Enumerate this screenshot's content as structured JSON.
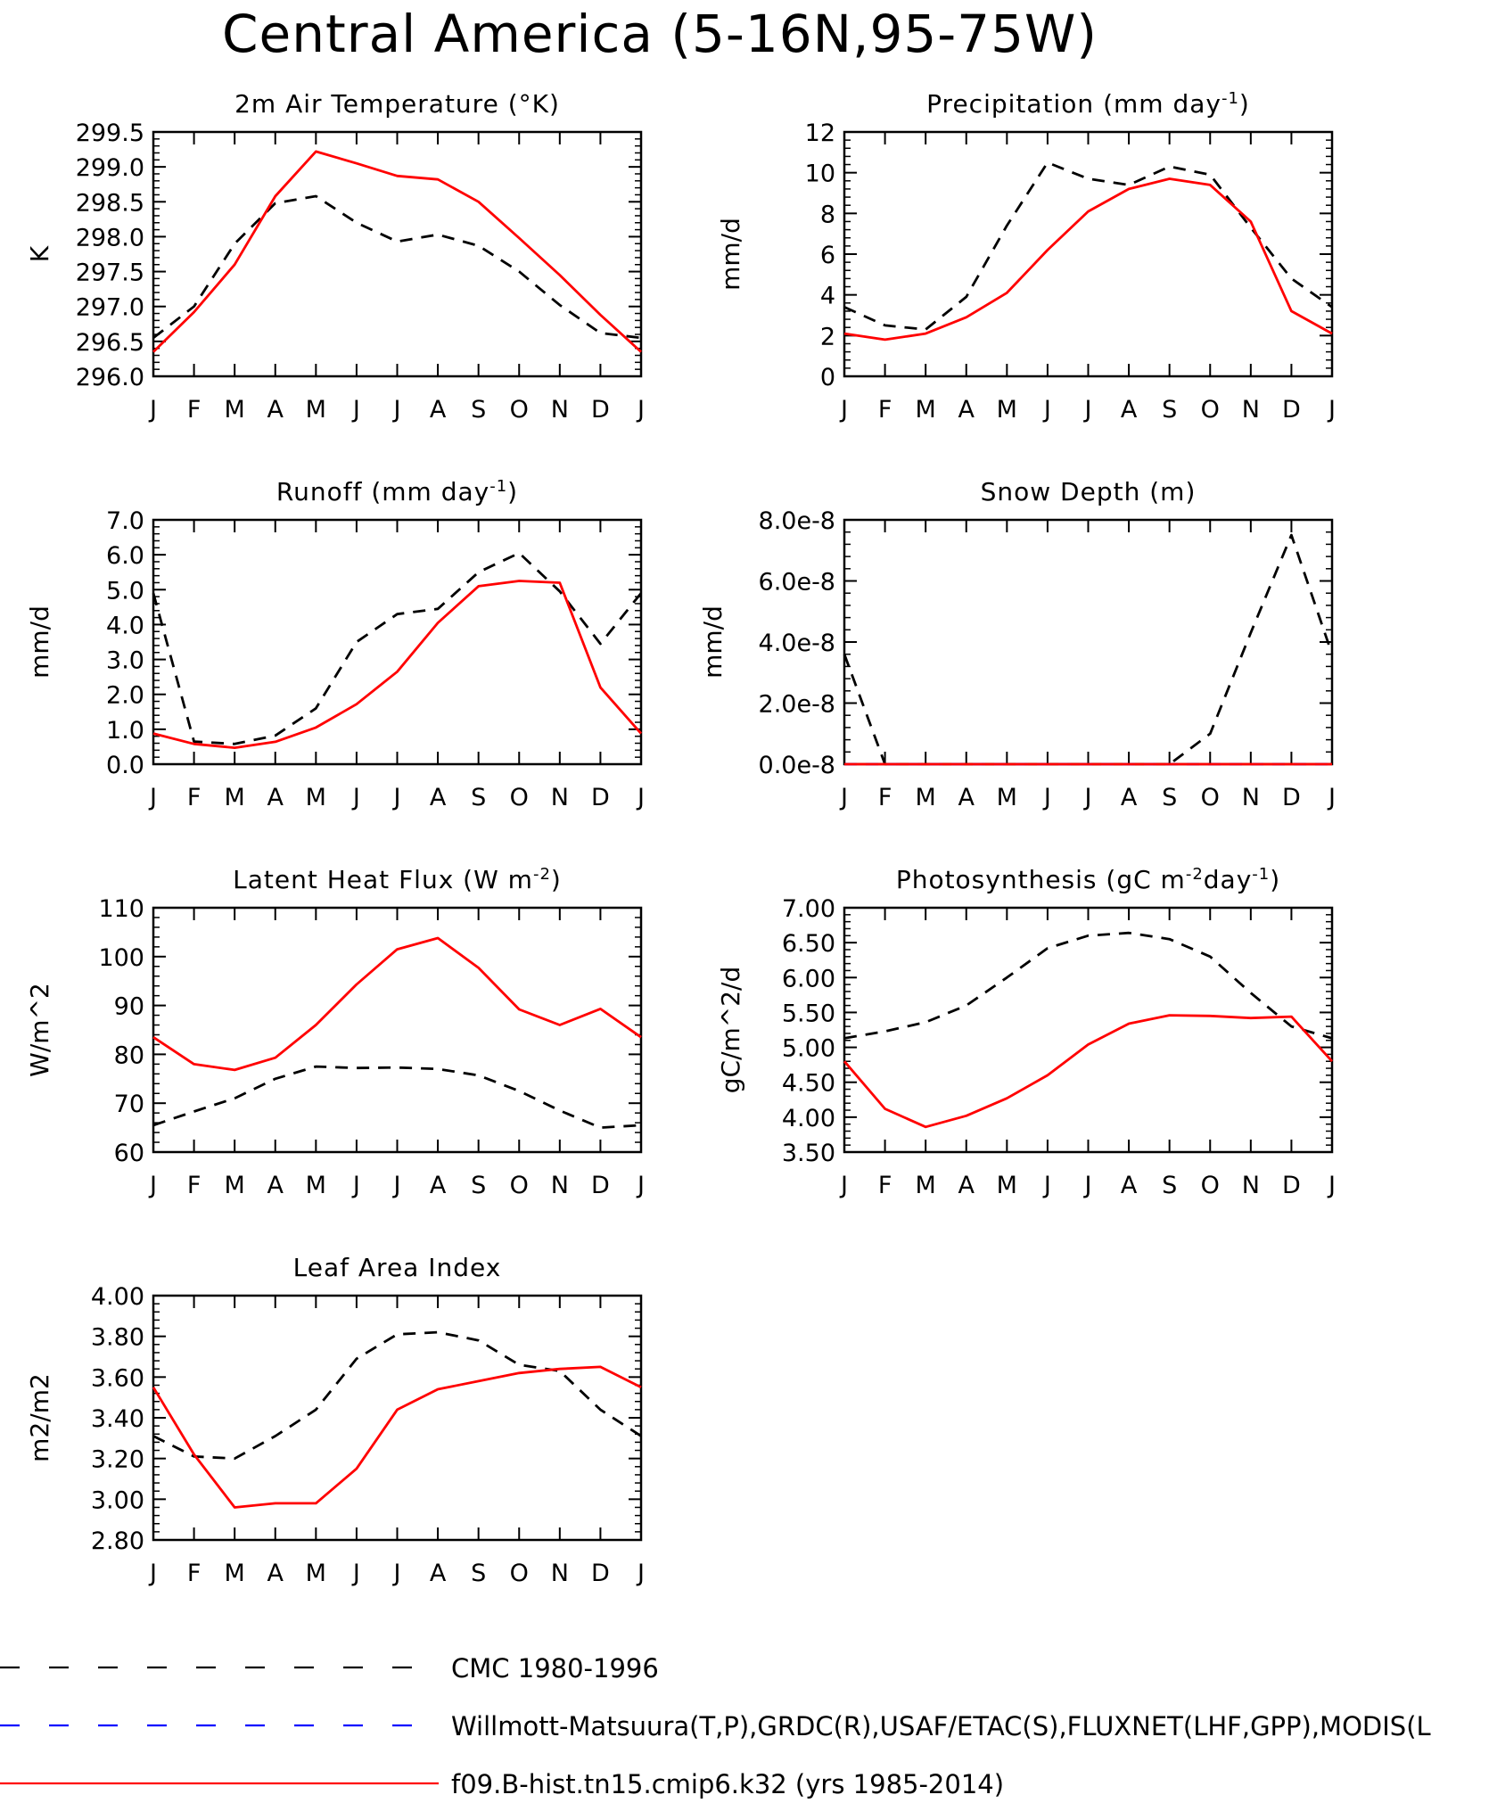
{
  "page_title": "Central America (5-16N,95-75W)",
  "months": [
    "J",
    "F",
    "M",
    "A",
    "M",
    "J",
    "J",
    "A",
    "S",
    "O",
    "N",
    "D",
    "J"
  ],
  "legend": [
    {
      "label": "CMC 1980-1996",
      "color": "#000000",
      "style": "dashed"
    },
    {
      "label": "Willmott-Matsuura(T,P),GRDC(R),USAF/ETAC(S),FLUXNET(LHF,GPP),MODIS(L",
      "color": "#0000ff",
      "style": "dashed"
    },
    {
      "label": "f09.B-hist.tn15.cmip6.k32 (yrs 1985-2014)",
      "color": "#ff0000",
      "style": "solid"
    }
  ],
  "chart_data": [
    {
      "type": "line",
      "title": "2m Air Temperature (°K)",
      "ylabel": "K",
      "ylim": [
        296.0,
        299.5
      ],
      "yticks": [
        "296.0",
        "296.5",
        "297.0",
        "297.5",
        "298.0",
        "298.5",
        "299.0",
        "299.5"
      ],
      "series": [
        {
          "name": "CMC 1980-1996",
          "style": "dashed",
          "color": "#000000",
          "values": [
            296.55,
            297.0,
            297.9,
            298.48,
            298.58,
            298.2,
            297.93,
            298.03,
            297.87,
            297.5,
            297.02,
            296.62,
            296.55
          ]
        },
        {
          "name": "f09.B-hist.tn15.cmip6.k32 (yrs 1985-2014)",
          "style": "solid",
          "color": "#ff0000",
          "values": [
            296.35,
            296.92,
            297.6,
            298.58,
            299.22,
            299.05,
            298.87,
            298.82,
            298.5,
            297.98,
            297.45,
            296.88,
            296.35
          ]
        }
      ]
    },
    {
      "type": "line",
      "title": "Precipitation (mm day-1)",
      "ylabel": "mm/d",
      "ylim": [
        0,
        12
      ],
      "yticks": [
        "0",
        "2",
        "4",
        "6",
        "8",
        "10",
        "12"
      ],
      "series": [
        {
          "name": "CMC 1980-1996",
          "style": "dashed",
          "color": "#000000",
          "values": [
            3.4,
            2.5,
            2.3,
            3.9,
            7.4,
            10.5,
            9.7,
            9.4,
            10.3,
            9.9,
            7.3,
            4.8,
            3.4
          ]
        },
        {
          "name": "f09.B-hist.tn15.cmip6.k32 (yrs 1985-2014)",
          "style": "solid",
          "color": "#ff0000",
          "values": [
            2.1,
            1.8,
            2.1,
            2.9,
            4.1,
            6.2,
            8.1,
            9.2,
            9.7,
            9.4,
            7.6,
            3.2,
            2.1
          ]
        }
      ]
    },
    {
      "type": "line",
      "title": "Runoff (mm day-1)",
      "ylabel": "mm/d",
      "ylim": [
        0,
        7
      ],
      "yticks": [
        "0.0",
        "1.0",
        "2.0",
        "3.0",
        "4.0",
        "5.0",
        "6.0",
        "7.0"
      ],
      "series": [
        {
          "name": "CMC 1980-1996",
          "style": "dashed",
          "color": "#000000",
          "values": [
            4.9,
            0.65,
            0.58,
            0.82,
            1.6,
            3.5,
            4.3,
            4.45,
            5.5,
            6.05,
            4.95,
            3.45,
            4.9
          ]
        },
        {
          "name": "f09.B-hist.tn15.cmip6.k32 (yrs 1985-2014)",
          "style": "solid",
          "color": "#ff0000",
          "values": [
            0.88,
            0.58,
            0.47,
            0.64,
            1.05,
            1.72,
            2.65,
            4.05,
            5.1,
            5.25,
            5.2,
            2.2,
            0.88
          ]
        }
      ]
    },
    {
      "type": "line",
      "title": "Snow Depth (m)",
      "ylabel": "mm/d",
      "ylim": [
        0,
        8e-08
      ],
      "yticks": [
        "0.0e-8",
        "2.0e-8",
        "4.0e-8",
        "6.0e-8",
        "8.0e-8"
      ],
      "series": [
        {
          "name": "CMC 1980-1996",
          "style": "dashed",
          "color": "#000000",
          "values": [
            3.6e-08,
            0,
            0,
            0,
            0,
            0,
            0,
            0,
            0,
            1e-08,
            4.3e-08,
            7.5e-08,
            3.6e-08
          ]
        },
        {
          "name": "Willmott-Matsuura(T,P),GRDC(R),USAF/ETAC(S),FLUXNET(LHF,GPP),MODIS(L",
          "style": "dashed",
          "color": "#0000ff",
          "values": [
            0,
            0,
            0,
            0,
            0,
            0,
            0,
            0,
            0,
            0,
            0,
            0,
            0
          ]
        },
        {
          "name": "f09.B-hist.tn15.cmip6.k32 (yrs 1985-2014)",
          "style": "solid",
          "color": "#ff0000",
          "values": [
            0,
            0,
            0,
            0,
            0,
            0,
            0,
            0,
            0,
            0,
            0,
            0,
            0
          ]
        }
      ]
    },
    {
      "type": "line",
      "title": "Latent Heat Flux (W m-2)",
      "ylabel": "W/m^2",
      "ylim": [
        60,
        110
      ],
      "yticks": [
        "60",
        "70",
        "80",
        "90",
        "100",
        "110"
      ],
      "series": [
        {
          "name": "CMC 1980-1996",
          "style": "dashed",
          "color": "#000000",
          "values": [
            65.5,
            68.3,
            71.0,
            75.0,
            77.5,
            77.2,
            77.3,
            77.0,
            75.7,
            72.5,
            68.5,
            65.0,
            65.5
          ]
        },
        {
          "name": "f09.B-hist.tn15.cmip6.k32 (yrs 1985-2014)",
          "style": "solid",
          "color": "#ff0000",
          "values": [
            83.5,
            78.0,
            76.8,
            79.3,
            86.0,
            94.3,
            101.5,
            103.8,
            97.7,
            89.2,
            86.0,
            89.3,
            83.5
          ]
        }
      ]
    },
    {
      "type": "line",
      "title": "Photosynthesis (gC m-2day-1)",
      "ylabel": "gC/m^2/d",
      "ylim": [
        3.5,
        7.0
      ],
      "yticks": [
        "3.50",
        "4.00",
        "4.50",
        "5.00",
        "5.50",
        "6.00",
        "6.50",
        "7.00"
      ],
      "series": [
        {
          "name": "CMC 1980-1996",
          "style": "dashed",
          "color": "#000000",
          "values": [
            5.13,
            5.23,
            5.36,
            5.6,
            6.0,
            6.42,
            6.6,
            6.64,
            6.55,
            6.3,
            5.78,
            5.3,
            5.13
          ]
        },
        {
          "name": "f09.B-hist.tn15.cmip6.k32 (yrs 1985-2014)",
          "style": "solid",
          "color": "#ff0000",
          "values": [
            4.8,
            4.12,
            3.86,
            4.02,
            4.27,
            4.6,
            5.04,
            5.34,
            5.46,
            5.45,
            5.42,
            5.44,
            4.8
          ]
        }
      ]
    },
    {
      "type": "line",
      "title": "Leaf Area Index",
      "ylabel": "m2/m2",
      "ylim": [
        2.8,
        4.0
      ],
      "yticks": [
        "2.80",
        "3.00",
        "3.20",
        "3.40",
        "3.60",
        "3.80",
        "4.00"
      ],
      "series": [
        {
          "name": "CMC 1980-1996",
          "style": "dashed",
          "color": "#000000",
          "values": [
            3.31,
            3.21,
            3.2,
            3.31,
            3.44,
            3.69,
            3.81,
            3.82,
            3.78,
            3.66,
            3.63,
            3.44,
            3.31
          ]
        },
        {
          "name": "f09.B-hist.tn15.cmip6.k32 (yrs 1985-2014)",
          "style": "solid",
          "color": "#ff0000",
          "values": [
            3.55,
            3.22,
            2.96,
            2.98,
            2.98,
            3.15,
            3.44,
            3.54,
            3.58,
            3.62,
            3.64,
            3.65,
            3.55
          ]
        }
      ]
    }
  ]
}
